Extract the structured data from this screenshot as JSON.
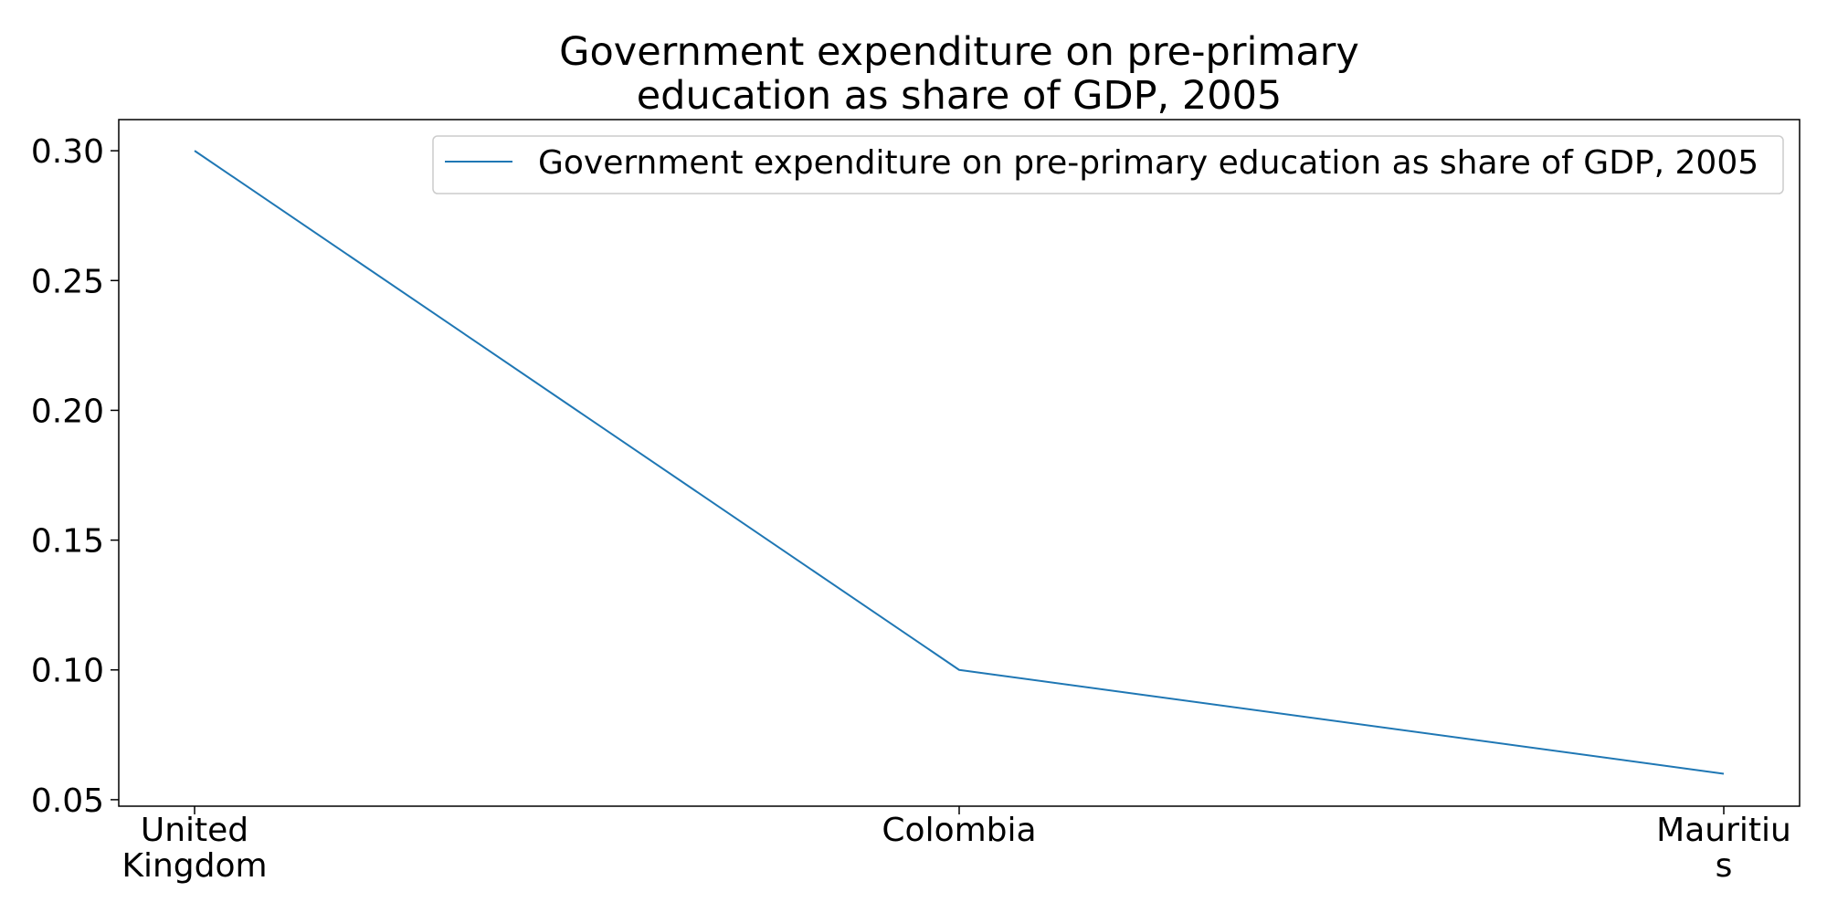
{
  "chart_data": {
    "type": "line",
    "title": "Government expenditure on pre-primary education as share of GDP, 2005",
    "title_lines": [
      "Government expenditure on pre-primary",
      "education as share of GDP, 2005"
    ],
    "categories": [
      "United Kingdom",
      "Colombia",
      "Mauritius"
    ],
    "category_tick_lines": [
      [
        "United",
        "Kingdom"
      ],
      [
        "Colombia"
      ],
      [
        "Mauritiu",
        "s"
      ]
    ],
    "series": [
      {
        "name": "Government expenditure on pre-primary education as share of GDP, 2005",
        "values": [
          0.3,
          0.1,
          0.06
        ],
        "color": "#1f77b4"
      }
    ],
    "xlabel": "",
    "ylabel": "",
    "ylim": [
      0.0475,
      0.312
    ],
    "yticks": [
      0.05,
      0.1,
      0.15,
      0.2,
      0.25,
      0.3
    ],
    "ytick_labels": [
      "0.05",
      "0.10",
      "0.15",
      "0.20",
      "0.25",
      "0.30"
    ],
    "grid": false,
    "legend_position": "top-right"
  }
}
